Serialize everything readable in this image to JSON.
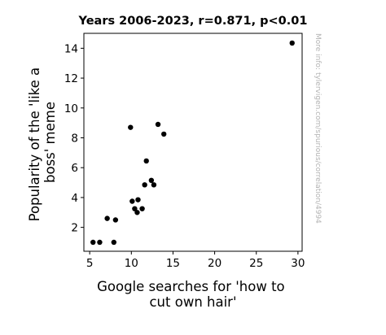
{
  "chart_data": {
    "type": "scatter",
    "title": "Years 2006-2023, r=0.871, p<0.01",
    "xlabel_lines": [
      "Google searches for 'how to",
      "cut own hair'"
    ],
    "ylabel_lines": [
      "Popularity of the 'like a",
      "boss' meme"
    ],
    "watermark": "More info: tylervigen.com/spurious/correlation/4994",
    "xlim": [
      4.3,
      30.5
    ],
    "ylim": [
      0.4,
      15.0
    ],
    "xticks": [
      5,
      10,
      15,
      20,
      25,
      30
    ],
    "yticks": [
      2,
      4,
      6,
      8,
      10,
      12,
      14
    ],
    "grid": false,
    "point_color": "#000000",
    "points": [
      {
        "x": 5.4,
        "y": 1.0
      },
      {
        "x": 6.2,
        "y": 1.0
      },
      {
        "x": 7.9,
        "y": 1.0
      },
      {
        "x": 7.1,
        "y": 2.6
      },
      {
        "x": 8.1,
        "y": 2.5
      },
      {
        "x": 9.9,
        "y": 8.7
      },
      {
        "x": 10.1,
        "y": 3.75
      },
      {
        "x": 10.4,
        "y": 3.25
      },
      {
        "x": 10.7,
        "y": 3.0
      },
      {
        "x": 10.8,
        "y": 3.85
      },
      {
        "x": 11.3,
        "y": 3.25
      },
      {
        "x": 11.6,
        "y": 4.85
      },
      {
        "x": 11.8,
        "y": 6.45
      },
      {
        "x": 12.4,
        "y": 5.15
      },
      {
        "x": 12.7,
        "y": 4.85
      },
      {
        "x": 13.2,
        "y": 8.9
      },
      {
        "x": 13.9,
        "y": 8.25
      },
      {
        "x": 29.3,
        "y": 14.35
      }
    ]
  }
}
